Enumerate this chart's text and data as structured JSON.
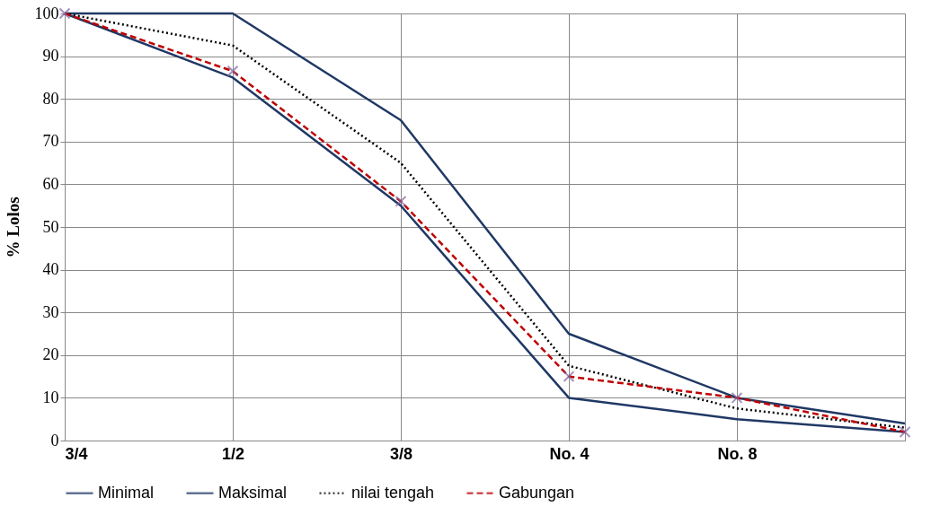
{
  "chart_data": {
    "type": "line",
    "ylabel": "% Lolos",
    "categories": [
      "3/4",
      "1/2",
      "3/8",
      "No. 4",
      "No. 8",
      null
    ],
    "ylim": [
      0,
      100
    ],
    "yticks": [
      0,
      10,
      20,
      30,
      40,
      50,
      60,
      70,
      80,
      90,
      100
    ],
    "grid": true,
    "legend": "bottom",
    "series": [
      {
        "name": "Minimal",
        "color": "#1f3864",
        "line_style": "solid",
        "marker": "none",
        "values": [
          100,
          85,
          55,
          10,
          5,
          2
        ]
      },
      {
        "name": "Maksimal",
        "color": "#1f3864",
        "line_style": "solid",
        "marker": "none",
        "values": [
          100,
          100,
          75,
          25,
          10,
          4
        ]
      },
      {
        "name": "nilai tengah",
        "color": "#000000",
        "line_style": "dotted",
        "marker": "none",
        "values": [
          100,
          92.5,
          65,
          17.5,
          7.5,
          3
        ]
      },
      {
        "name": "Gabungan",
        "color": "#c00000",
        "line_style": "dashed",
        "marker": "cross",
        "colors": [
          "#8064a2",
          "#8064a2",
          "#8064a2",
          "#8064a2",
          "#8064a2",
          "#8064a2"
        ],
        "values": [
          100,
          86.5,
          56,
          15,
          10,
          2
        ]
      }
    ]
  }
}
